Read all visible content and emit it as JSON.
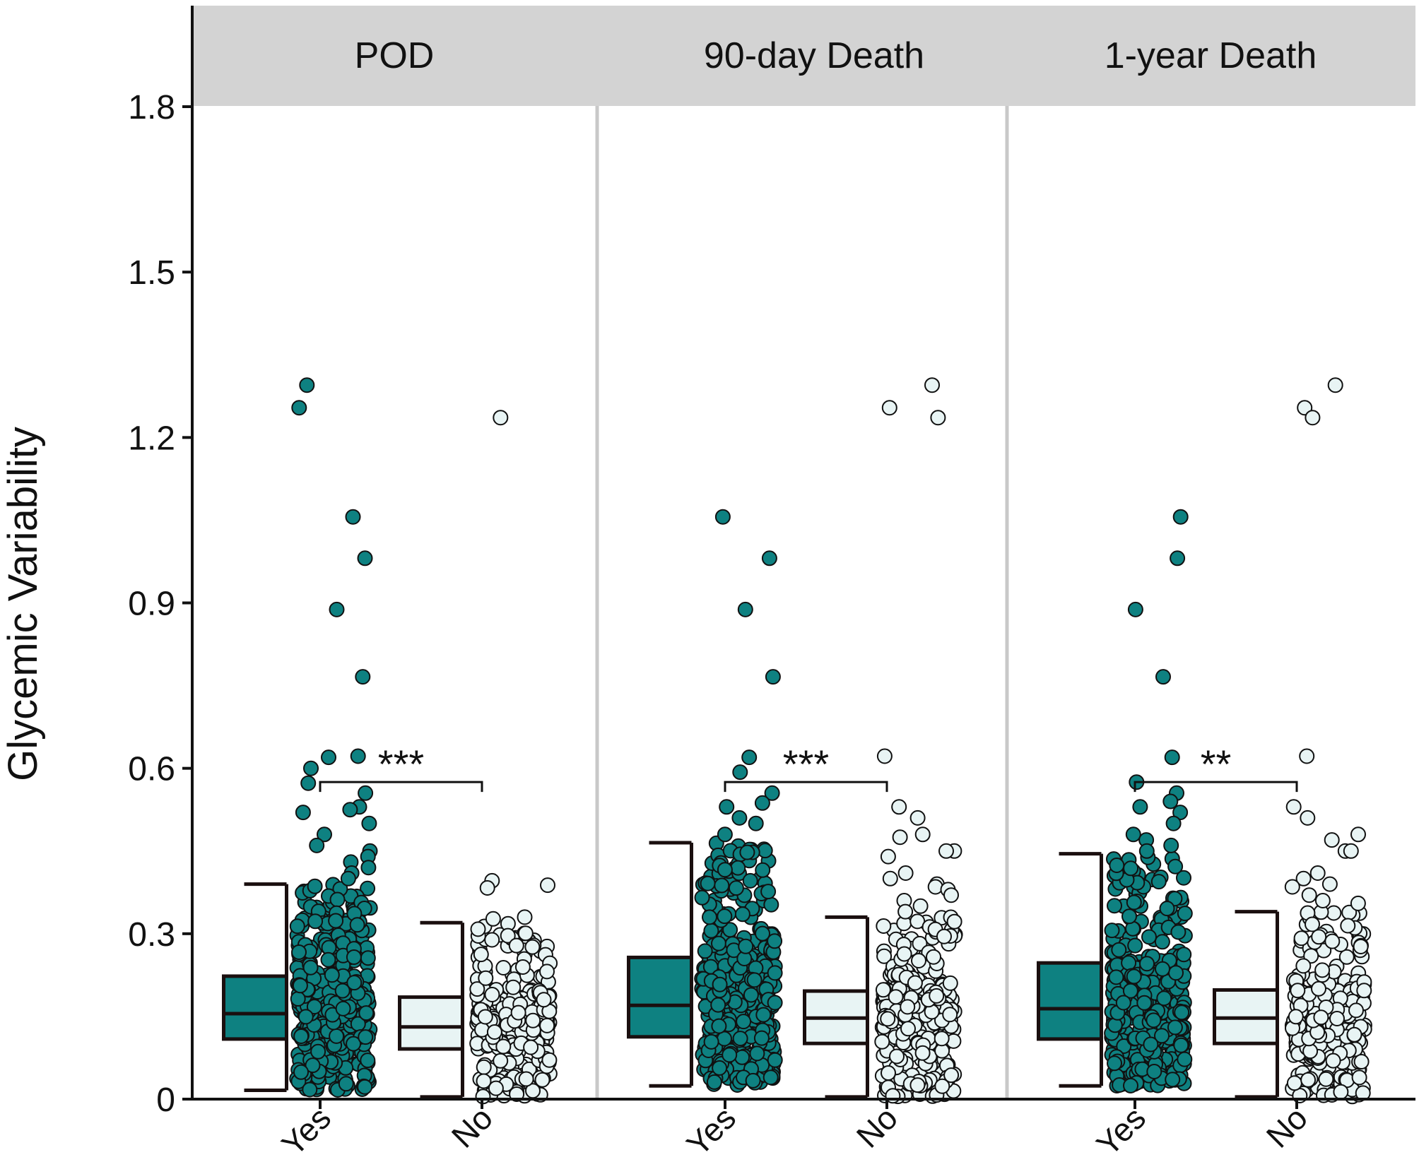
{
  "colors": {
    "yes_fill": "#0e8181",
    "no_fill": "#e8f4f4",
    "outline": "#1a0f0f",
    "strip_bg": "#d3d3d3",
    "separator": "#c8c8c8",
    "point_outline": "#111111"
  },
  "chart_data": {
    "type": "box",
    "ylabel": "Glycemic Variability",
    "ylim": [
      0,
      1.8
    ],
    "yticks": [
      "0",
      "0.3",
      "0.6",
      "0.9",
      "1.2",
      "1.5",
      "1.8"
    ],
    "categories": [
      "Yes",
      "No"
    ],
    "point_style": "jittered points overlaid on boxes",
    "panels": [
      {
        "title": "POD",
        "significance": "***",
        "bracket_y": 0.575,
        "groups": [
          {
            "name": "Yes",
            "whisker_low": 0.016,
            "q1": 0.109,
            "median": 0.155,
            "q3": 0.223,
            "whisker_high": 0.39,
            "outliers": [
              1.295,
              1.254,
              1.056,
              0.981,
              0.888,
              0.766,
              0.622,
              0.62,
              0.6,
              0.573,
              0.555,
              0.53,
              0.525,
              0.52,
              0.5,
              0.48,
              0.46,
              0.45,
              0.44,
              0.43,
              0.42,
              0.41,
              0.4
            ]
          },
          {
            "name": "No",
            "whisker_low": 0.004,
            "q1": 0.091,
            "median": 0.131,
            "q3": 0.185,
            "whisker_high": 0.32,
            "outliers": [
              1.236,
              0.396,
              0.388,
              0.383,
              0.33,
              0.327
            ]
          }
        ]
      },
      {
        "title": "90-day Death",
        "significance": "***",
        "bracket_y": 0.575,
        "groups": [
          {
            "name": "Yes",
            "whisker_low": 0.024,
            "q1": 0.113,
            "median": 0.17,
            "q3": 0.257,
            "whisker_high": 0.465,
            "outliers": [
              1.056,
              0.981,
              0.888,
              0.766,
              0.62,
              0.593,
              0.555,
              0.537,
              0.53,
              0.51,
              0.5,
              0.48
            ]
          },
          {
            "name": "No",
            "whisker_low": 0.004,
            "q1": 0.101,
            "median": 0.147,
            "q3": 0.196,
            "whisker_high": 0.33,
            "outliers": [
              1.295,
              1.254,
              1.236,
              0.622,
              0.53,
              0.51,
              0.48,
              0.475,
              0.45,
              0.45,
              0.44,
              0.41,
              0.4,
              0.39,
              0.385,
              0.38,
              0.37,
              0.36,
              0.35,
              0.34
            ]
          }
        ]
      },
      {
        "title": "1-year Death",
        "significance": "**",
        "bracket_y": 0.575,
        "groups": [
          {
            "name": "Yes",
            "whisker_low": 0.024,
            "q1": 0.109,
            "median": 0.164,
            "q3": 0.247,
            "whisker_high": 0.445,
            "outliers": [
              1.056,
              0.981,
              0.888,
              0.766,
              0.62,
              0.575,
              0.555,
              0.54,
              0.53,
              0.52,
              0.5,
              0.48,
              0.47,
              0.46,
              0.45
            ]
          },
          {
            "name": "No",
            "whisker_low": 0.004,
            "q1": 0.101,
            "median": 0.147,
            "q3": 0.198,
            "whisker_high": 0.34,
            "outliers": [
              1.295,
              1.254,
              1.236,
              0.622,
              0.53,
              0.51,
              0.48,
              0.47,
              0.45,
              0.45,
              0.41,
              0.4,
              0.39,
              0.385,
              0.37,
              0.36,
              0.355
            ]
          }
        ]
      }
    ]
  }
}
